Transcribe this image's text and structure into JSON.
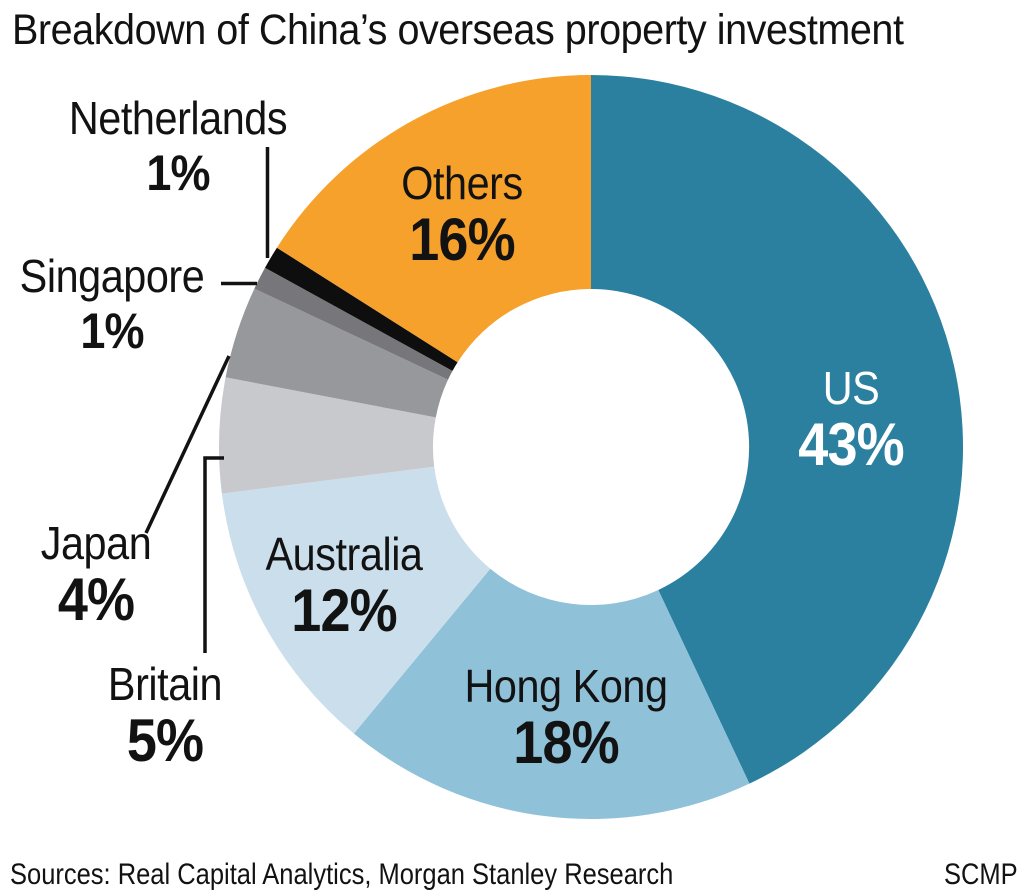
{
  "title": "Breakdown of China’s overseas property investment",
  "source_line": "Sources: Real Capital Analytics, Morgan Stanley Research",
  "credit": "SCMP",
  "text_color": "#121212",
  "background_color": "#ffffff",
  "chart_data": {
    "type": "pie",
    "subtype": "donut",
    "title": "Breakdown of China’s overseas property investment",
    "unit": "%",
    "start_angle_deg": 0,
    "direction": "clockwise",
    "donut_hole_ratio": 0.425,
    "legend": "none",
    "values_sum": 100,
    "slices": [
      {
        "label": "US",
        "value": 43,
        "pct": "43%",
        "color": "#2b80a0",
        "label_color": "#ffffff"
      },
      {
        "label": "Hong Kong",
        "value": 18,
        "pct": "18%",
        "color": "#8fc1d9",
        "label_color": "#121212"
      },
      {
        "label": "Australia",
        "value": 12,
        "pct": "12%",
        "color": "#cadeeb",
        "label_color": "#121212"
      },
      {
        "label": "Britain",
        "value": 5,
        "pct": "5%",
        "color": "#c8c9cc",
        "label_color": "#121212"
      },
      {
        "label": "Japan",
        "value": 4,
        "pct": "4%",
        "color": "#97989c",
        "label_color": "#121212"
      },
      {
        "label": "Singapore",
        "value": 1,
        "pct": "1%",
        "color": "#77777b",
        "label_color": "#121212"
      },
      {
        "label": "Netherlands",
        "value": 1,
        "pct": "1%",
        "color": "#0e0e0e",
        "label_color": "#121212"
      },
      {
        "label": "Others",
        "value": 16,
        "pct": "16%",
        "color": "#f5a12b",
        "label_color": "#121212"
      }
    ]
  }
}
